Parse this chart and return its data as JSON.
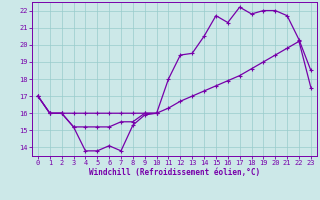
{
  "xlabel": "Windchill (Refroidissement éolien,°C)",
  "bg_color": "#cce8e8",
  "grid_color": "#99cccc",
  "line_color": "#7700aa",
  "xlim": [
    -0.5,
    23.5
  ],
  "ylim": [
    13.5,
    22.5
  ],
  "xticks": [
    0,
    1,
    2,
    3,
    4,
    5,
    6,
    7,
    8,
    9,
    10,
    11,
    12,
    13,
    14,
    15,
    16,
    17,
    18,
    19,
    20,
    21,
    22,
    23
  ],
  "yticks": [
    14,
    15,
    16,
    17,
    18,
    19,
    20,
    21,
    22
  ],
  "line1_y": [
    17.0,
    16.0,
    16.0,
    15.2,
    13.8,
    13.8,
    14.1,
    13.8,
    15.3,
    15.9,
    16.0,
    null,
    null,
    null,
    null,
    null,
    null,
    null,
    null,
    null,
    null,
    null,
    null,
    null
  ],
  "line2_y": [
    17.0,
    16.0,
    16.0,
    16.0,
    16.0,
    16.0,
    16.0,
    16.0,
    16.0,
    16.0,
    16.0,
    16.3,
    16.7,
    17.0,
    17.3,
    17.6,
    17.9,
    18.2,
    18.6,
    19.0,
    19.4,
    19.8,
    20.2,
    17.5
  ],
  "line3_y": [
    17.0,
    16.0,
    16.0,
    15.2,
    15.2,
    15.2,
    15.2,
    15.5,
    15.5,
    16.0,
    16.0,
    18.0,
    19.4,
    19.5,
    20.5,
    21.7,
    21.3,
    22.2,
    21.8,
    22.0,
    22.0,
    21.7,
    20.3,
    18.5
  ]
}
